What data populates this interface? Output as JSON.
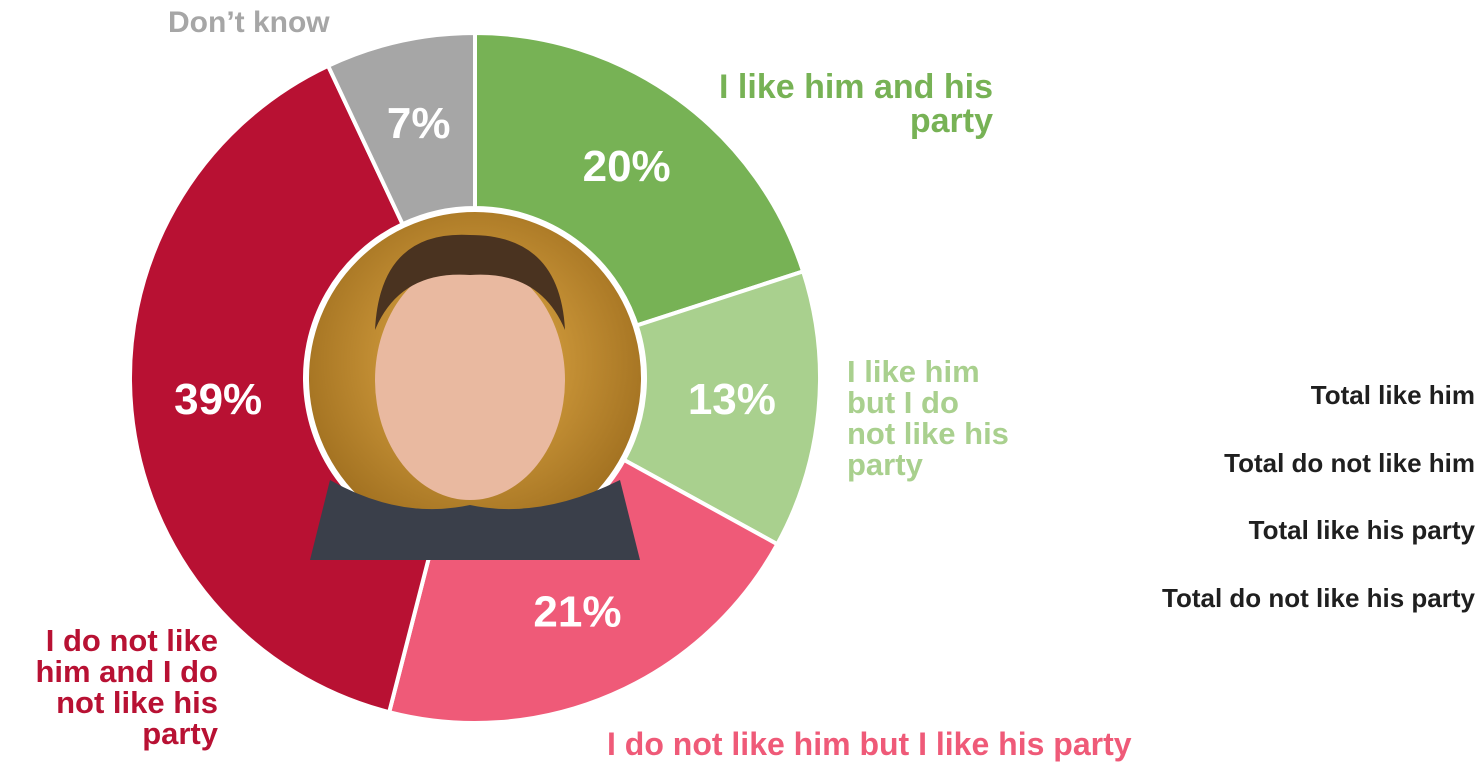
{
  "chart_data": {
    "type": "donut",
    "categories": [
      "I like him and his party",
      "I like him but I do not like his party",
      "I do not like him but I like his party",
      "I do not like him and I do not like his party",
      "Don’t know"
    ],
    "values": [
      20,
      13,
      21,
      39,
      7
    ],
    "value_labels": [
      "20%",
      "13%",
      "21%",
      "39%",
      "7%"
    ],
    "colors": [
      "#77b255",
      "#a9d08e",
      "#ef5a78",
      "#b81133",
      "#a6a6a6"
    ]
  },
  "totals": [
    "Total like him",
    "Total do not like him",
    "Total like his party",
    "Total do not like his party"
  ]
}
